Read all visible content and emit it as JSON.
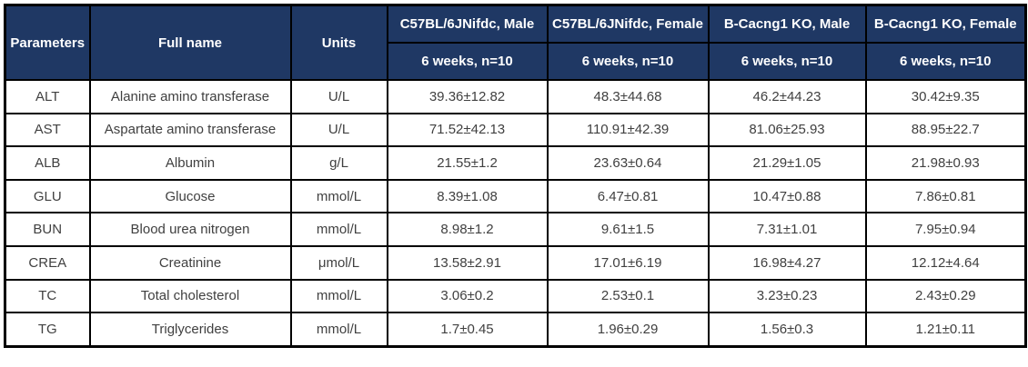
{
  "colors": {
    "header_bg": "#1f3864",
    "header_text": "#ffffff",
    "body_text": "#404040",
    "border": "#000000"
  },
  "table": {
    "columns": [
      {
        "label": "Parameters"
      },
      {
        "label": "Full name"
      },
      {
        "label": "Units"
      },
      {
        "label": "C57BL/6JNifdc, Male",
        "sub": "6 weeks, n=10"
      },
      {
        "label": "C57BL/6JNifdc, Female",
        "sub": "6 weeks, n=10"
      },
      {
        "label": "B-Cacng1 KO, Male",
        "sub": "6 weeks, n=10"
      },
      {
        "label": "B-Cacng1 KO, Female",
        "sub": "6 weeks, n=10"
      }
    ],
    "rows": [
      {
        "parameter": "ALT",
        "full_name": "Alanine amino transferase",
        "units": "U/L",
        "values": [
          "39.36±12.82",
          "48.3±44.68",
          "46.2±44.23",
          "30.42±9.35"
        ]
      },
      {
        "parameter": "AST",
        "full_name": "Aspartate amino transferase",
        "units": "U/L",
        "values": [
          "71.52±42.13",
          "110.91±42.39",
          "81.06±25.93",
          "88.95±22.7"
        ]
      },
      {
        "parameter": "ALB",
        "full_name": "Albumin",
        "units": "g/L",
        "values": [
          "21.55±1.2",
          "23.63±0.64",
          "21.29±1.05",
          "21.98±0.93"
        ]
      },
      {
        "parameter": "GLU",
        "full_name": "Glucose",
        "units": "mmol/L",
        "values": [
          "8.39±1.08",
          "6.47±0.81",
          "10.47±0.88",
          "7.86±0.81"
        ]
      },
      {
        "parameter": "BUN",
        "full_name": "Blood urea nitrogen",
        "units": "mmol/L",
        "values": [
          "8.98±1.2",
          "9.61±1.5",
          "7.31±1.01",
          "7.95±0.94"
        ]
      },
      {
        "parameter": "CREA",
        "full_name": "Creatinine",
        "units": "μmol/L",
        "values": [
          "13.58±2.91",
          "17.01±6.19",
          "16.98±4.27",
          "12.12±4.64"
        ]
      },
      {
        "parameter": "TC",
        "full_name": "Total cholesterol",
        "units": "mmol/L",
        "values": [
          "3.06±0.2",
          "2.53±0.1",
          "3.23±0.23",
          "2.43±0.29"
        ]
      },
      {
        "parameter": "TG",
        "full_name": "Triglycerides",
        "units": "mmol/L",
        "values": [
          "1.7±0.45",
          "1.96±0.29",
          "1.56±0.3",
          "1.21±0.11"
        ]
      }
    ]
  }
}
